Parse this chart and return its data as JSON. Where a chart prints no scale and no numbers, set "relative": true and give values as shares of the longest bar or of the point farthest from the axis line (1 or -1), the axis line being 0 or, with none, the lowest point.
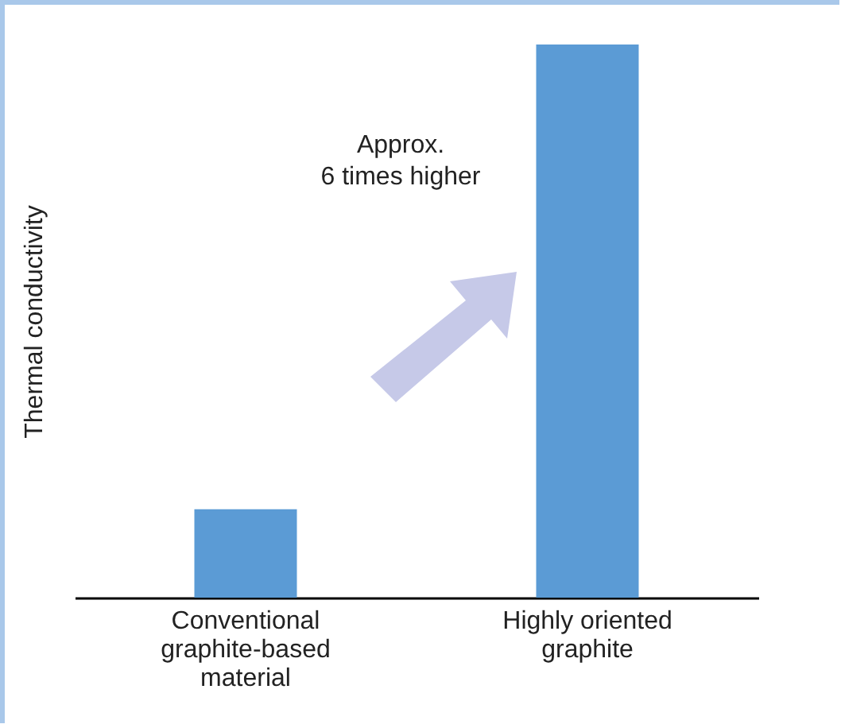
{
  "chart_data": {
    "type": "bar",
    "relative": true,
    "ylabel": "Thermal conductivity",
    "categories": [
      "Conventional graphite-based material",
      "Highly oriented graphite"
    ],
    "values": [
      0.16,
      1
    ],
    "color": "#5b9bd5",
    "annotations": [
      "Approx.\n6 times higher"
    ]
  }
}
